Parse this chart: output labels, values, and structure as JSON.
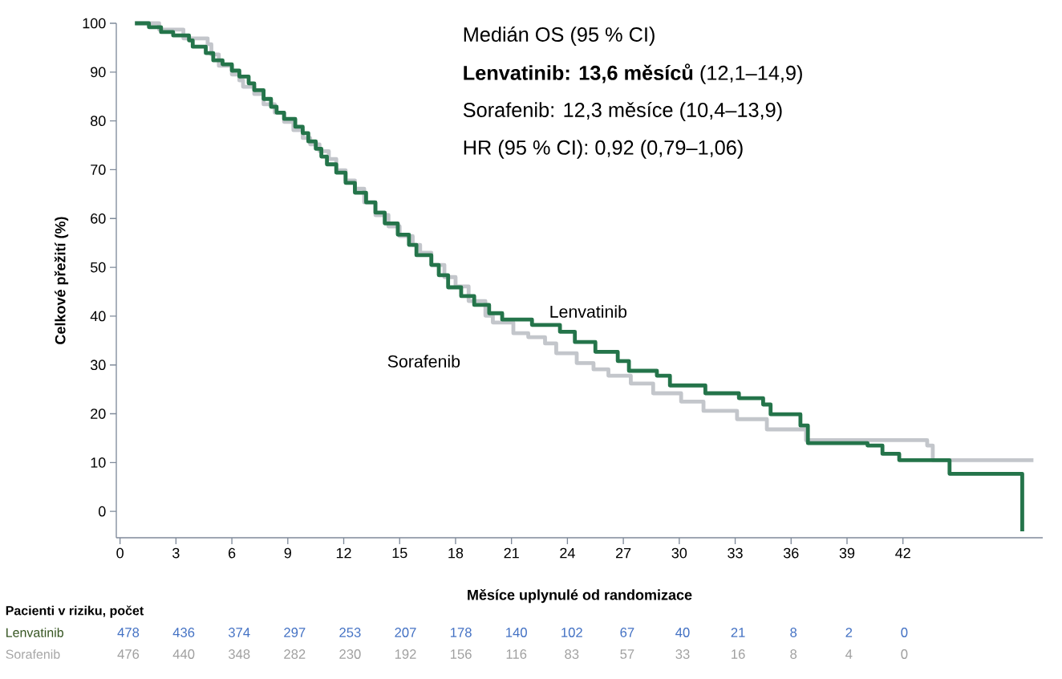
{
  "chart_data": {
    "type": "step",
    "xlabel": "Měsíce uplynulé od randomizace",
    "ylabel": "Celkové přežití (%)",
    "xlim": [
      -0.2,
      49.5
    ],
    "ylim": [
      -5.4,
      100
    ],
    "xticks": [
      0,
      3,
      6,
      9,
      12,
      15,
      18,
      21,
      24,
      27,
      30,
      33,
      36,
      39,
      42
    ],
    "yticks": [
      0,
      10,
      20,
      30,
      40,
      50,
      60,
      70,
      80,
      90,
      100
    ],
    "series": [
      {
        "name": "Lenvatinib",
        "color": "#24744a",
        "x": [
          0.8,
          1.55,
          2.2,
          2.85,
          3.7,
          3.9,
          4.6,
          5.0,
          5.5,
          6.0,
          6.4,
          6.9,
          7.2,
          7.7,
          8.1,
          8.4,
          8.8,
          9.4,
          9.8,
          10.1,
          10.5,
          10.8,
          11.1,
          11.6,
          12.1,
          12.6,
          13.2,
          13.7,
          14.2,
          14.9,
          15.5,
          15.9,
          16.7,
          17.1,
          17.6,
          18.3,
          19.0,
          19.8,
          20.5,
          22.1,
          23.6,
          24.4,
          25.5,
          26.7,
          27.3,
          28.8,
          29.5,
          31.4,
          33.2,
          34.5,
          34.9,
          36.5,
          36.9,
          40.1,
          40.9,
          41.8,
          44.5,
          48.4
        ],
        "values": [
          100,
          99.2,
          98.2,
          97.5,
          96.5,
          95.2,
          93.9,
          92.4,
          91.6,
          90.3,
          89.1,
          87.7,
          86.3,
          84.5,
          82.9,
          81.7,
          80.4,
          78.8,
          77.5,
          75.8,
          74.3,
          72.7,
          71.1,
          69.4,
          67.3,
          65.3,
          63.3,
          61.2,
          59.0,
          56.7,
          54.6,
          52.5,
          50.5,
          48.4,
          45.9,
          44.1,
          42.3,
          40.6,
          39.3,
          38.2,
          36.8,
          34.7,
          32.7,
          30.8,
          28.8,
          27.8,
          25.8,
          24.2,
          23.2,
          21.9,
          19.9,
          17.6,
          14.0,
          13.5,
          11.8,
          10.5,
          7.7,
          -4.1
        ]
      },
      {
        "name": "Sorafenib",
        "color": "#c3c6cb",
        "x": [
          0.8,
          2.1,
          3.4,
          4.7,
          4.9,
          5.3,
          6.0,
          6.4,
          6.6,
          7.2,
          7.7,
          8.3,
          8.8,
          9.3,
          9.8,
          10.2,
          10.7,
          11.2,
          11.6,
          12.1,
          12.6,
          13.1,
          13.7,
          14.4,
          15.0,
          15.7,
          16.1,
          16.7,
          17.4,
          18.0,
          18.7,
          19.6,
          20.0,
          21.1,
          21.9,
          22.8,
          23.4,
          24.5,
          25.4,
          26.2,
          27.4,
          28.6,
          30.1,
          31.3,
          33.1,
          34.7,
          36.8,
          43.3,
          43.6,
          49.0
        ],
        "values": [
          100,
          98.7,
          96.9,
          95.7,
          93.6,
          91.3,
          89.5,
          88.3,
          87.0,
          85.5,
          83.4,
          81.7,
          79.8,
          78.1,
          76.5,
          75.2,
          73.8,
          72.2,
          69.9,
          67.8,
          66.1,
          63.3,
          60.7,
          58.4,
          56.4,
          54.6,
          53.0,
          50.5,
          48.0,
          46.1,
          43.1,
          40.1,
          38.7,
          36.5,
          35.7,
          34.4,
          32.4,
          30.4,
          29.1,
          27.8,
          26.2,
          24.2,
          22.5,
          20.6,
          18.9,
          16.8,
          14.6,
          13.5,
          10.5,
          10.5
        ]
      }
    ],
    "annotations": [
      "Medián OS  (95 % CI)",
      "**Lenvatinib: 13,6 měsíců** (12,1–14,9)",
      "Sorafenib: 12,3 měsíce (10,4–13,9)",
      "HR (95 % CI): 0,92 (0,79–1,06)",
      "Pacienti v riziku, počet",
      "Lenvatinib",
      "478",
      "436",
      "374",
      "297",
      "253",
      "207",
      "178",
      "140",
      "102",
      "67",
      "40",
      "21",
      "8",
      "2",
      "0",
      "Sorafenib",
      "476",
      "440",
      "348",
      "282",
      "230",
      "192",
      "156",
      "116",
      "83",
      "57",
      "33",
      "16",
      "8",
      "4",
      "0"
    ]
  }
}
